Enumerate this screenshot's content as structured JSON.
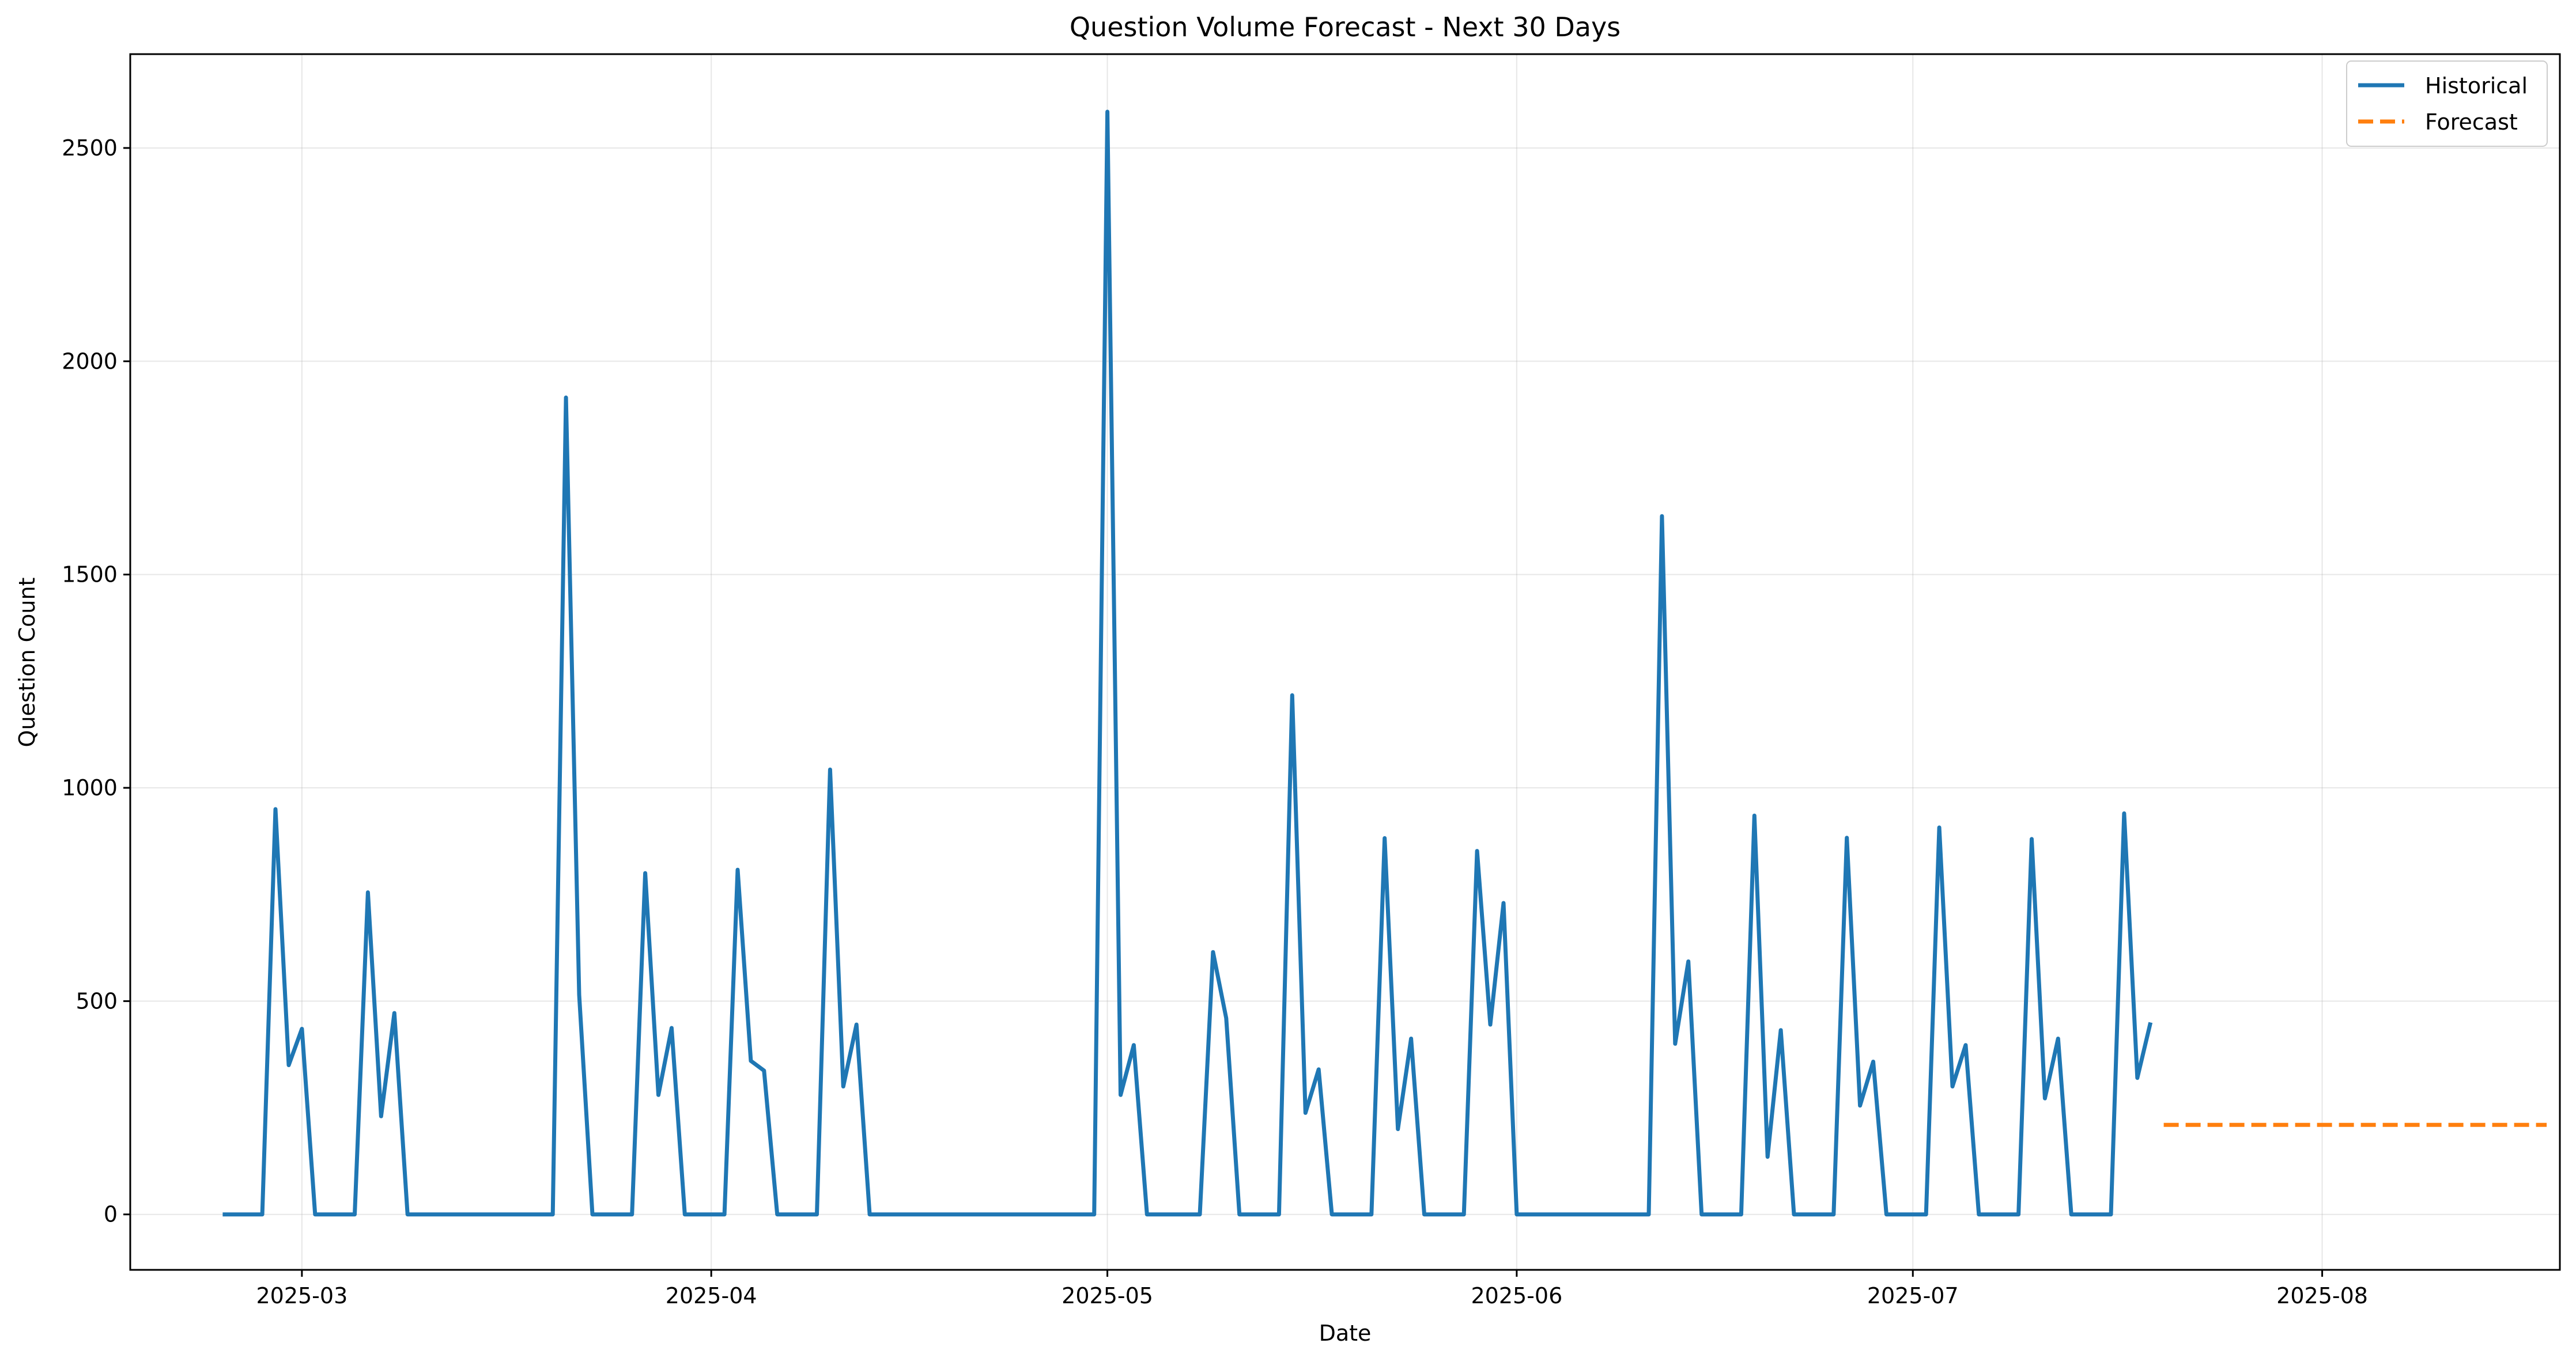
{
  "chart_data": {
    "type": "line",
    "title": "Question Volume Forecast - Next 30 Days",
    "xlabel": "Date",
    "ylabel": "Question Count",
    "xlim": [
      "2025-02-16",
      "2025-08-19"
    ],
    "ylim": [
      -130,
      2720
    ],
    "x_ticks": [
      {
        "date": "2025-03-01",
        "label": "2025-03"
      },
      {
        "date": "2025-04-01",
        "label": "2025-04"
      },
      {
        "date": "2025-05-01",
        "label": "2025-05"
      },
      {
        "date": "2025-06-01",
        "label": "2025-06"
      },
      {
        "date": "2025-07-01",
        "label": "2025-07"
      },
      {
        "date": "2025-08-01",
        "label": "2025-08"
      }
    ],
    "y_ticks": [
      {
        "value": 0,
        "label": "0"
      },
      {
        "value": 500,
        "label": "500"
      },
      {
        "value": 1000,
        "label": "1000"
      },
      {
        "value": 1500,
        "label": "1500"
      },
      {
        "value": 2000,
        "label": "2000"
      },
      {
        "value": 2500,
        "label": "2500"
      }
    ],
    "grid": true,
    "legend_position": "top-right",
    "series": [
      {
        "name": "Historical",
        "color": "#1f77b4",
        "style": "solid",
        "points": [
          [
            "2025-02-23",
            0
          ],
          [
            "2025-02-24",
            0
          ],
          [
            "2025-02-25",
            0
          ],
          [
            "2025-02-26",
            0
          ],
          [
            "2025-02-27",
            950
          ],
          [
            "2025-02-28",
            350
          ],
          [
            "2025-03-01",
            435
          ],
          [
            "2025-03-02",
            0
          ],
          [
            "2025-03-03",
            0
          ],
          [
            "2025-03-04",
            0
          ],
          [
            "2025-03-05",
            0
          ],
          [
            "2025-03-06",
            755
          ],
          [
            "2025-03-07",
            230
          ],
          [
            "2025-03-08",
            472
          ],
          [
            "2025-03-09",
            0
          ],
          [
            "2025-03-10",
            0
          ],
          [
            "2025-03-20",
            0
          ],
          [
            "2025-03-21",
            1915
          ],
          [
            "2025-03-22",
            515
          ],
          [
            "2025-03-23",
            0
          ],
          [
            "2025-03-24",
            0
          ],
          [
            "2025-03-25",
            0
          ],
          [
            "2025-03-26",
            0
          ],
          [
            "2025-03-27",
            800
          ],
          [
            "2025-03-28",
            280
          ],
          [
            "2025-03-29",
            437
          ],
          [
            "2025-03-30",
            0
          ],
          [
            "2025-03-31",
            0
          ],
          [
            "2025-04-01",
            0
          ],
          [
            "2025-04-02",
            0
          ],
          [
            "2025-04-03",
            808
          ],
          [
            "2025-04-04",
            360
          ],
          [
            "2025-04-05",
            337
          ],
          [
            "2025-04-06",
            0
          ],
          [
            "2025-04-07",
            0
          ],
          [
            "2025-04-08",
            0
          ],
          [
            "2025-04-09",
            0
          ],
          [
            "2025-04-10",
            1043
          ],
          [
            "2025-04-11",
            300
          ],
          [
            "2025-04-12",
            445
          ],
          [
            "2025-04-13",
            0
          ],
          [
            "2025-04-14",
            0
          ],
          [
            "2025-04-30",
            0
          ],
          [
            "2025-05-01",
            2585
          ],
          [
            "2025-05-02",
            280
          ],
          [
            "2025-05-03",
            397
          ],
          [
            "2025-05-04",
            0
          ],
          [
            "2025-05-05",
            0
          ],
          [
            "2025-05-06",
            0
          ],
          [
            "2025-05-07",
            0
          ],
          [
            "2025-05-08",
            0
          ],
          [
            "2025-05-09",
            615
          ],
          [
            "2025-05-10",
            460
          ],
          [
            "2025-05-11",
            0
          ],
          [
            "2025-05-12",
            0
          ],
          [
            "2025-05-13",
            0
          ],
          [
            "2025-05-14",
            0
          ],
          [
            "2025-05-15",
            1217
          ],
          [
            "2025-05-16",
            238
          ],
          [
            "2025-05-17",
            340
          ],
          [
            "2025-05-18",
            0
          ],
          [
            "2025-05-19",
            0
          ],
          [
            "2025-05-20",
            0
          ],
          [
            "2025-05-21",
            0
          ],
          [
            "2025-05-22",
            882
          ],
          [
            "2025-05-23",
            200
          ],
          [
            "2025-05-24",
            412
          ],
          [
            "2025-05-25",
            0
          ],
          [
            "2025-05-26",
            0
          ],
          [
            "2025-05-27",
            0
          ],
          [
            "2025-05-28",
            0
          ],
          [
            "2025-05-29",
            852
          ],
          [
            "2025-05-30",
            445
          ],
          [
            "2025-05-31",
            730
          ],
          [
            "2025-06-01",
            0
          ],
          [
            "2025-06-02",
            0
          ],
          [
            "2025-06-11",
            0
          ],
          [
            "2025-06-12",
            1637
          ],
          [
            "2025-06-13",
            400
          ],
          [
            "2025-06-14",
            593
          ],
          [
            "2025-06-15",
            0
          ],
          [
            "2025-06-16",
            0
          ],
          [
            "2025-06-17",
            0
          ],
          [
            "2025-06-18",
            0
          ],
          [
            "2025-06-19",
            935
          ],
          [
            "2025-06-20",
            135
          ],
          [
            "2025-06-21",
            432
          ],
          [
            "2025-06-22",
            0
          ],
          [
            "2025-06-23",
            0
          ],
          [
            "2025-06-24",
            0
          ],
          [
            "2025-06-25",
            0
          ],
          [
            "2025-06-26",
            883
          ],
          [
            "2025-06-27",
            255
          ],
          [
            "2025-06-28",
            358
          ],
          [
            "2025-06-29",
            0
          ],
          [
            "2025-06-30",
            0
          ],
          [
            "2025-07-01",
            0
          ],
          [
            "2025-07-02",
            0
          ],
          [
            "2025-07-03",
            907
          ],
          [
            "2025-07-04",
            300
          ],
          [
            "2025-07-05",
            397
          ],
          [
            "2025-07-06",
            0
          ],
          [
            "2025-07-07",
            0
          ],
          [
            "2025-07-08",
            0
          ],
          [
            "2025-07-09",
            0
          ],
          [
            "2025-07-10",
            880
          ],
          [
            "2025-07-11",
            272
          ],
          [
            "2025-07-12",
            412
          ],
          [
            "2025-07-13",
            0
          ],
          [
            "2025-07-14",
            0
          ],
          [
            "2025-07-15",
            0
          ],
          [
            "2025-07-16",
            0
          ],
          [
            "2025-07-17",
            940
          ],
          [
            "2025-07-18",
            320
          ],
          [
            "2025-07-19",
            450
          ]
        ]
      },
      {
        "name": "Forecast",
        "color": "#ff7f0e",
        "style": "dashed",
        "points": [
          [
            "2025-07-20",
            210
          ],
          [
            "2025-08-18",
            210
          ]
        ]
      }
    ]
  }
}
